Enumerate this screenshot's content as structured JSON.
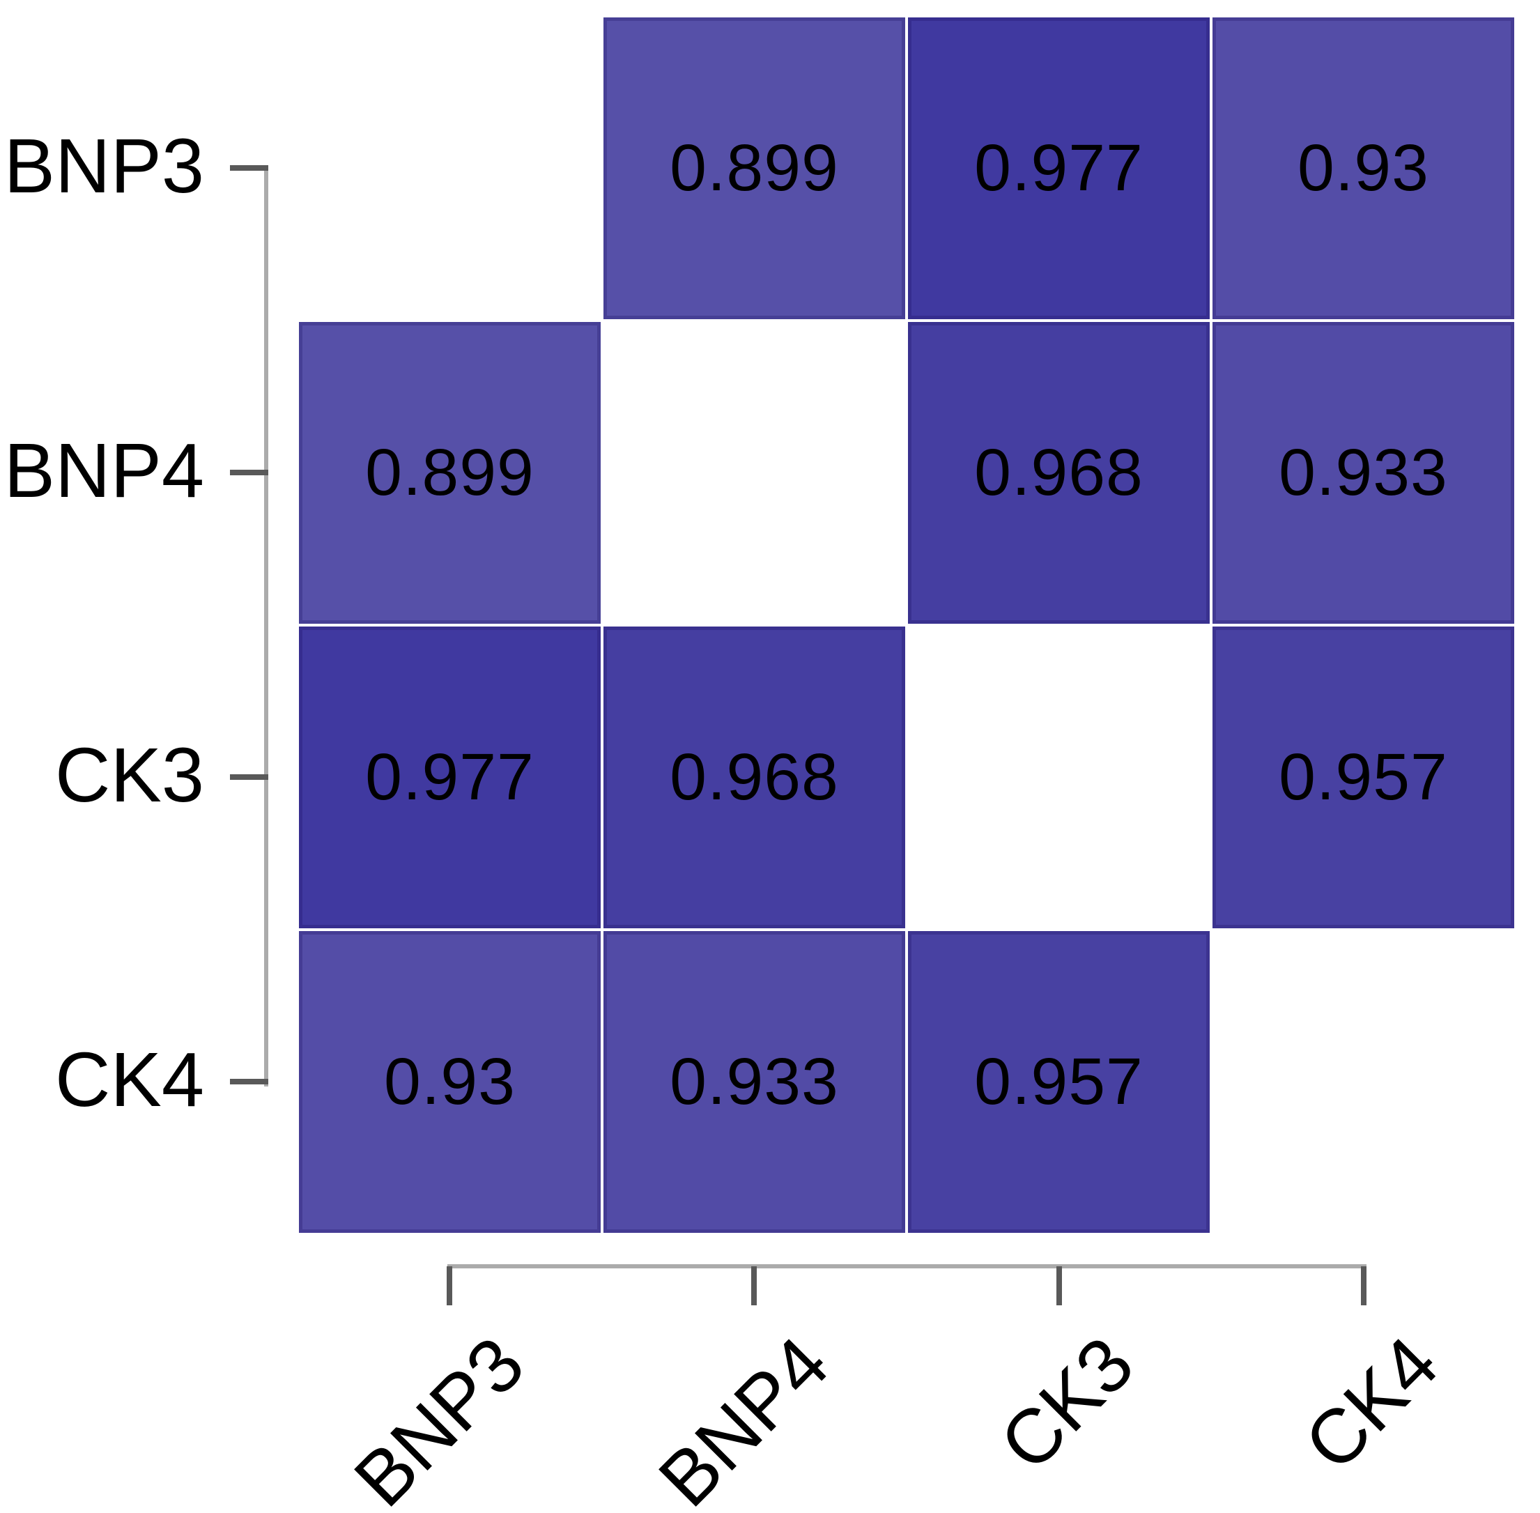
{
  "chart_data": {
    "type": "heatmap",
    "title": "",
    "subtitle": "",
    "x_categories": [
      "BNP3",
      "BNP4",
      "CK3",
      "CK4"
    ],
    "y_categories": [
      "BNP3",
      "BNP4",
      "CK3",
      "CK4"
    ],
    "values": [
      [
        null,
        0.899,
        0.977,
        0.93
      ],
      [
        0.899,
        null,
        0.968,
        0.933
      ],
      [
        0.977,
        0.968,
        null,
        0.957
      ],
      [
        0.93,
        0.933,
        0.957,
        null
      ]
    ],
    "diagonal_cells": "blank",
    "color_map": {
      "0.899": "#5650A8",
      "0.93": "#544DA7",
      "0.933": "#524BA6",
      "0.957": "#4841A2",
      "0.968": "#453EA1",
      "0.977": "#4039A0"
    },
    "value_text_color": "#000000",
    "axis_label_color": "#000000",
    "axis_line_color": "#ABABAB",
    "tick_color": "#595959",
    "background": "#FFFFFF",
    "x_label_rotation_deg": 45,
    "legend": "none",
    "grid": "off"
  }
}
